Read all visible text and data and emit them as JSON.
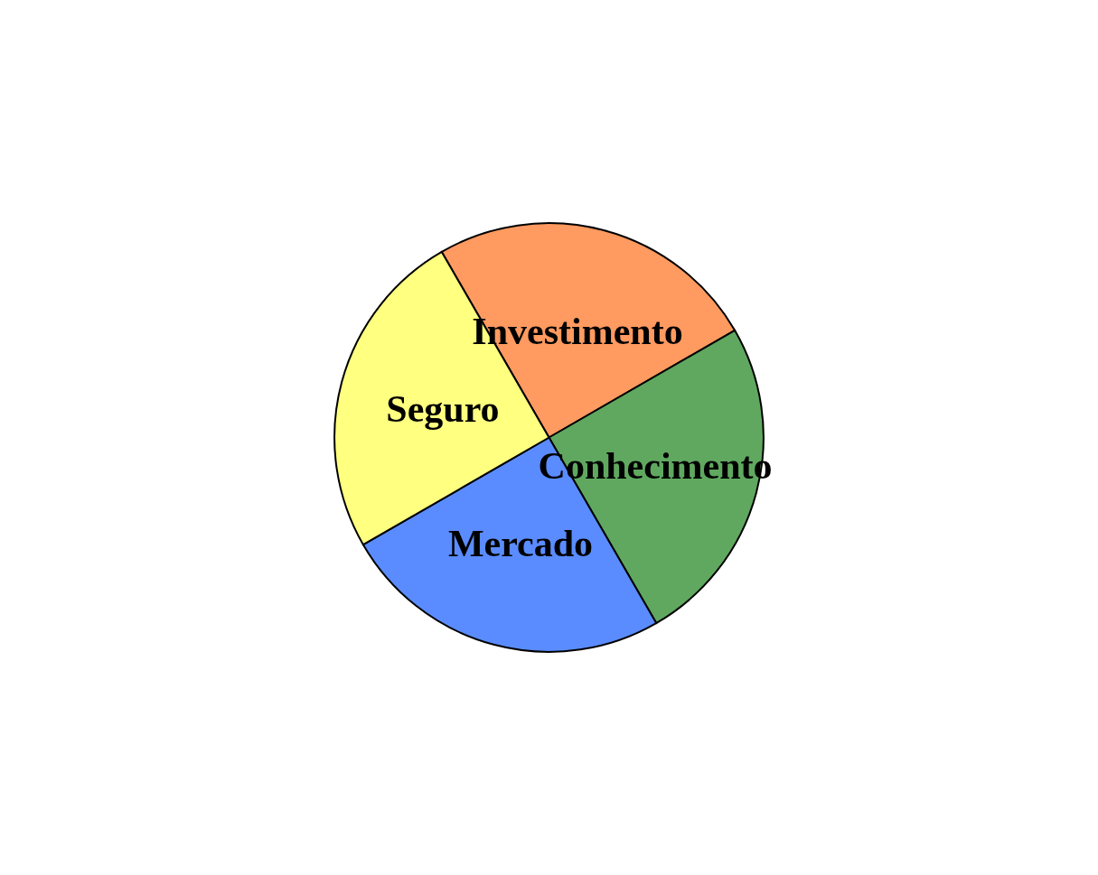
{
  "chart_data": {
    "type": "pie",
    "categories": [
      "Investimento",
      "Conhecimento",
      "Mercado",
      "Seguro"
    ],
    "values": [
      25,
      25,
      25,
      25
    ],
    "colors": [
      "#ff9a60",
      "#60a860",
      "#5a8cff",
      "#ffff80"
    ],
    "legend": false
  }
}
